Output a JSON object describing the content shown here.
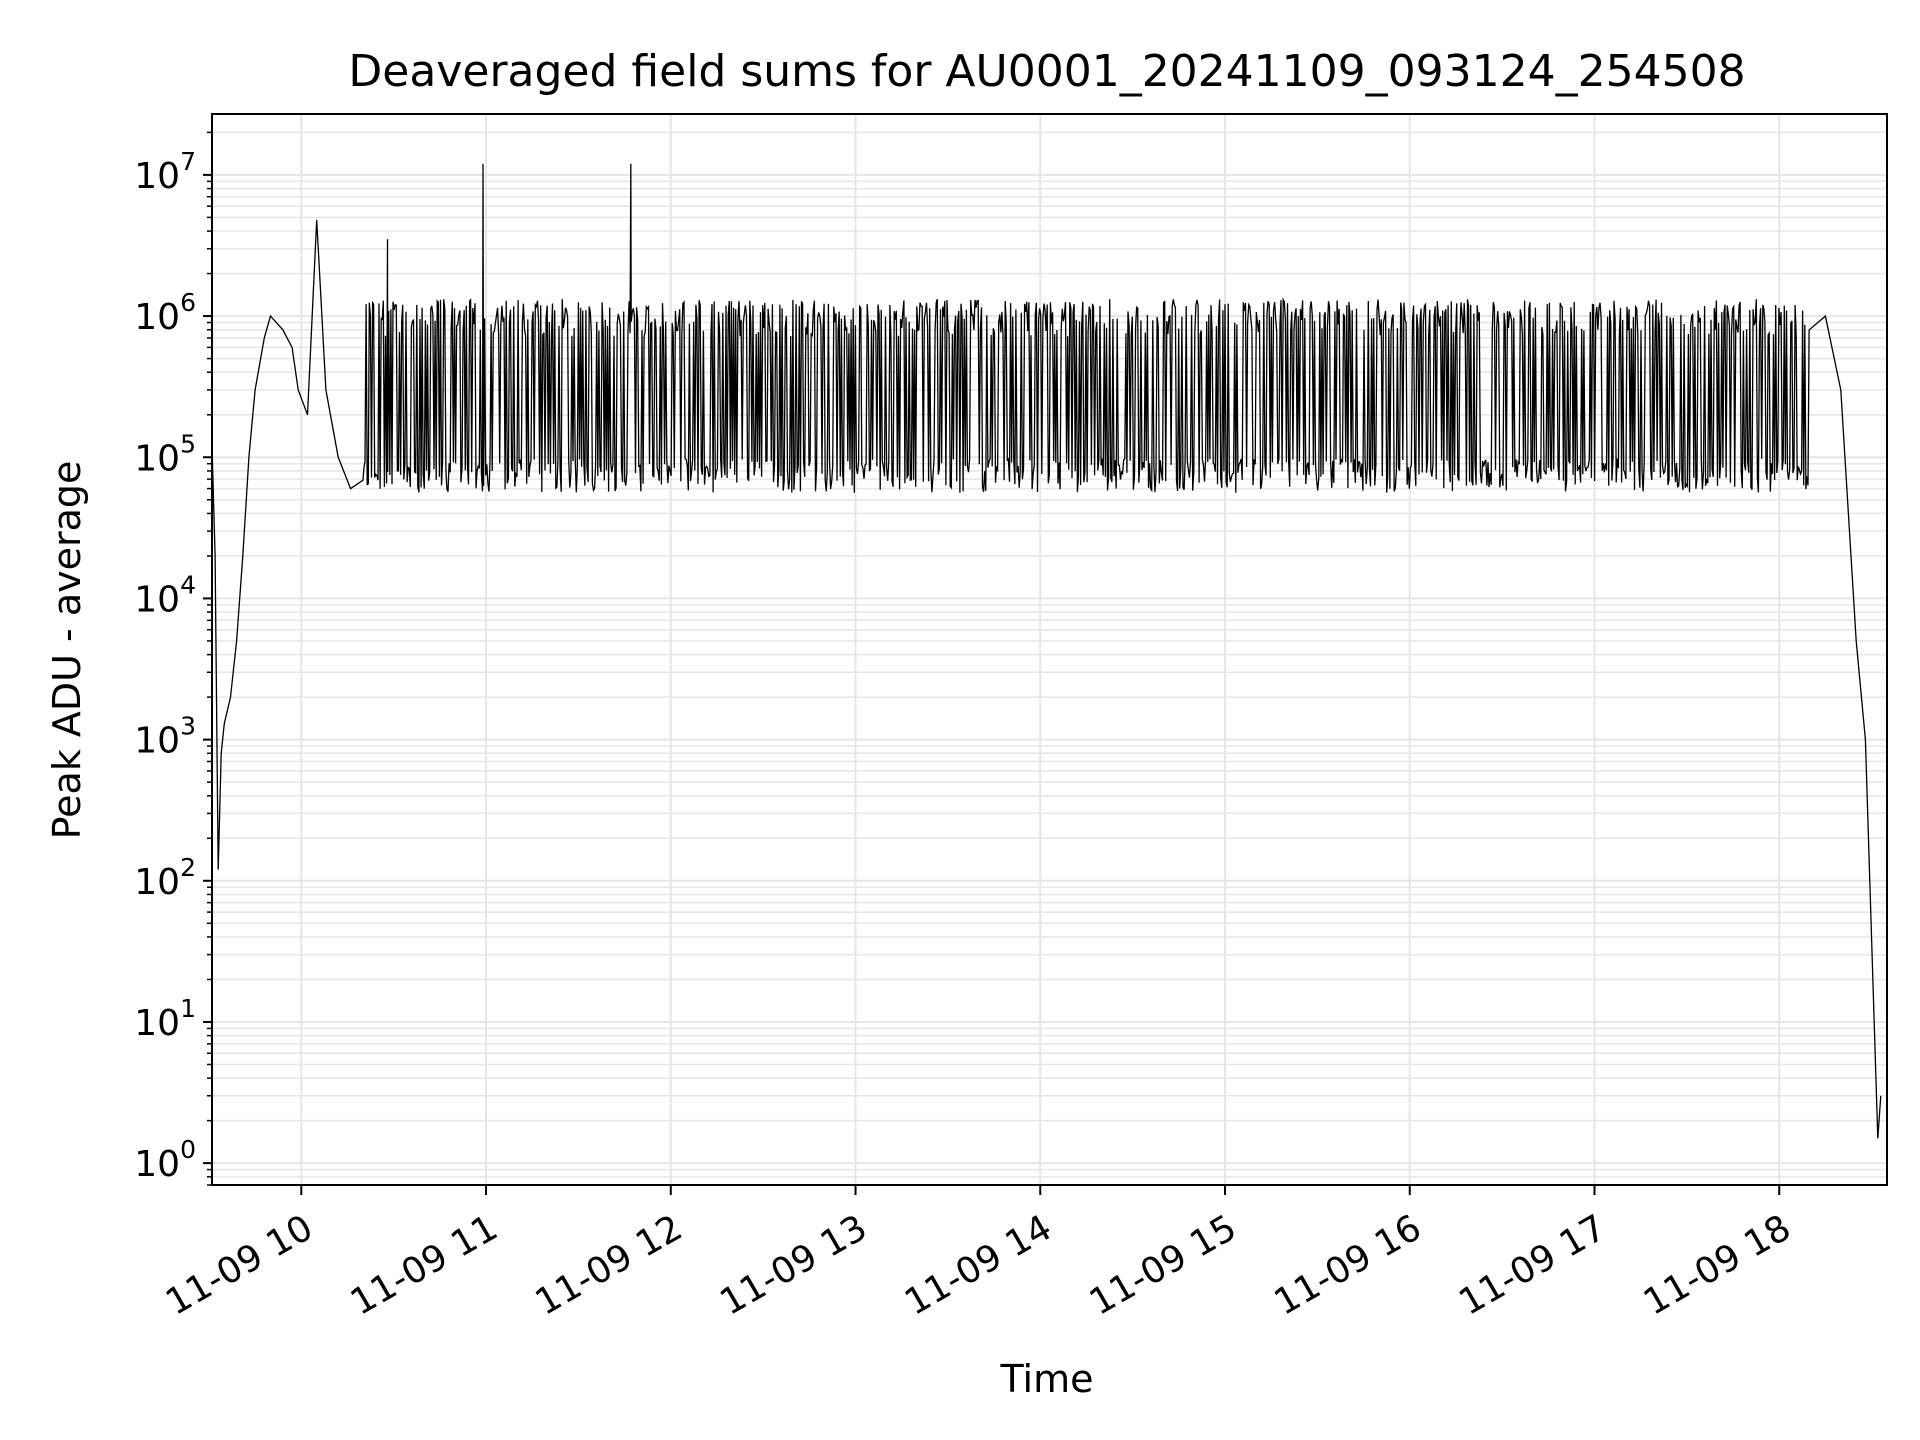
{
  "chart_data": {
    "type": "line",
    "title": "Deaveraged field sums for AU0001_20241109_093124_254508",
    "xlabel": "Time",
    "ylabel": "Peak ADU - average",
    "y_scale": "log",
    "grid": true,
    "line_color": "#000000",
    "grid_color": "#e6e6e6",
    "x_range": [
      "11-09 09:31",
      "11-09 18:35"
    ],
    "y_range": [
      0.7,
      27000000
    ],
    "x_ticks": [
      {
        "label": "11-09 10",
        "hour": 10
      },
      {
        "label": "11-09 11",
        "hour": 11
      },
      {
        "label": "11-09 12",
        "hour": 12
      },
      {
        "label": "11-09 13",
        "hour": 13
      },
      {
        "label": "11-09 14",
        "hour": 14
      },
      {
        "label": "11-09 15",
        "hour": 15
      },
      {
        "label": "11-09 16",
        "hour": 16
      },
      {
        "label": "11-09 17",
        "hour": 17
      },
      {
        "label": "11-09 18",
        "hour": 18
      }
    ],
    "y_ticks": [
      {
        "base": "10",
        "exp": "0",
        "value": 1
      },
      {
        "base": "10",
        "exp": "1",
        "value": 10
      },
      {
        "base": "10",
        "exp": "2",
        "value": 100
      },
      {
        "base": "10",
        "exp": "3",
        "value": 1000
      },
      {
        "base": "10",
        "exp": "4",
        "value": 10000
      },
      {
        "base": "10",
        "exp": "5",
        "value": 100000
      },
      {
        "base": "10",
        "exp": "6",
        "value": 1000000
      },
      {
        "base": "10",
        "exp": "7",
        "value": 10000000
      }
    ],
    "series": [
      {
        "values_note_free": true,
        "points": [
          [
            "11-09 09:31",
            1.0
          ],
          [
            "11-09 09:31",
            120000
          ],
          [
            "11-09 09:32",
            20000
          ],
          [
            "11-09 09:33",
            120
          ],
          [
            "11-09 09:34",
            800
          ],
          [
            "11-09 09:35",
            1300
          ],
          [
            "11-09 09:37",
            2000
          ],
          [
            "11-09 09:39",
            5000
          ],
          [
            "11-09 09:41",
            20000
          ],
          [
            "11-09 09:43",
            100000
          ],
          [
            "11-09 09:45",
            300000
          ],
          [
            "11-09 09:48",
            700000
          ],
          [
            "11-09 09:50",
            1000000
          ],
          [
            "11-09 09:54",
            800000
          ],
          [
            "11-09 09:57",
            600000
          ],
          [
            "11-09 09:59",
            300000
          ],
          [
            "11-09 10:02",
            200000
          ],
          [
            "11-09 10:05",
            4800000
          ],
          [
            "11-09 10:08",
            300000
          ],
          [
            "11-09 10:12",
            100000
          ],
          [
            "11-09 10:16",
            60000
          ],
          [
            "11-09 10:28",
            3500000
          ],
          [
            "11-09 10:30",
            60000
          ],
          [
            "11-09 10:45",
            55000
          ],
          [
            "11-09 10:59",
            12000000
          ],
          [
            "11-09 11:00",
            100000
          ],
          [
            "11-09 11:15",
            150000
          ],
          [
            "11-09 11:30",
            130000
          ],
          [
            "11-09 11:47",
            12000000
          ],
          [
            "11-09 11:48",
            150000
          ],
          [
            "11-09 12:30",
            600000
          ],
          [
            "11-09 13:00",
            600000
          ],
          [
            "11-09 14:00",
            600000
          ],
          [
            "11-09 15:00",
            600000
          ],
          [
            "11-09 16:00",
            600000
          ],
          [
            "11-09 17:00",
            600000
          ],
          [
            "11-09 17:45",
            400000
          ],
          [
            "11-09 18:10",
            1900000
          ],
          [
            "11-09 18:15",
            1000000
          ],
          [
            "11-09 18:20",
            300000
          ],
          [
            "11-09 18:25",
            5000
          ],
          [
            "11-09 18:28",
            1000
          ],
          [
            "11-09 18:32",
            1.5
          ],
          [
            "11-09 18:33",
            3.0
          ]
        ],
        "envelope": {
          "start": "11-09 10:20",
          "end": "11-09 18:10",
          "upper": 1200000,
          "lower": 70000
        }
      }
    ]
  }
}
